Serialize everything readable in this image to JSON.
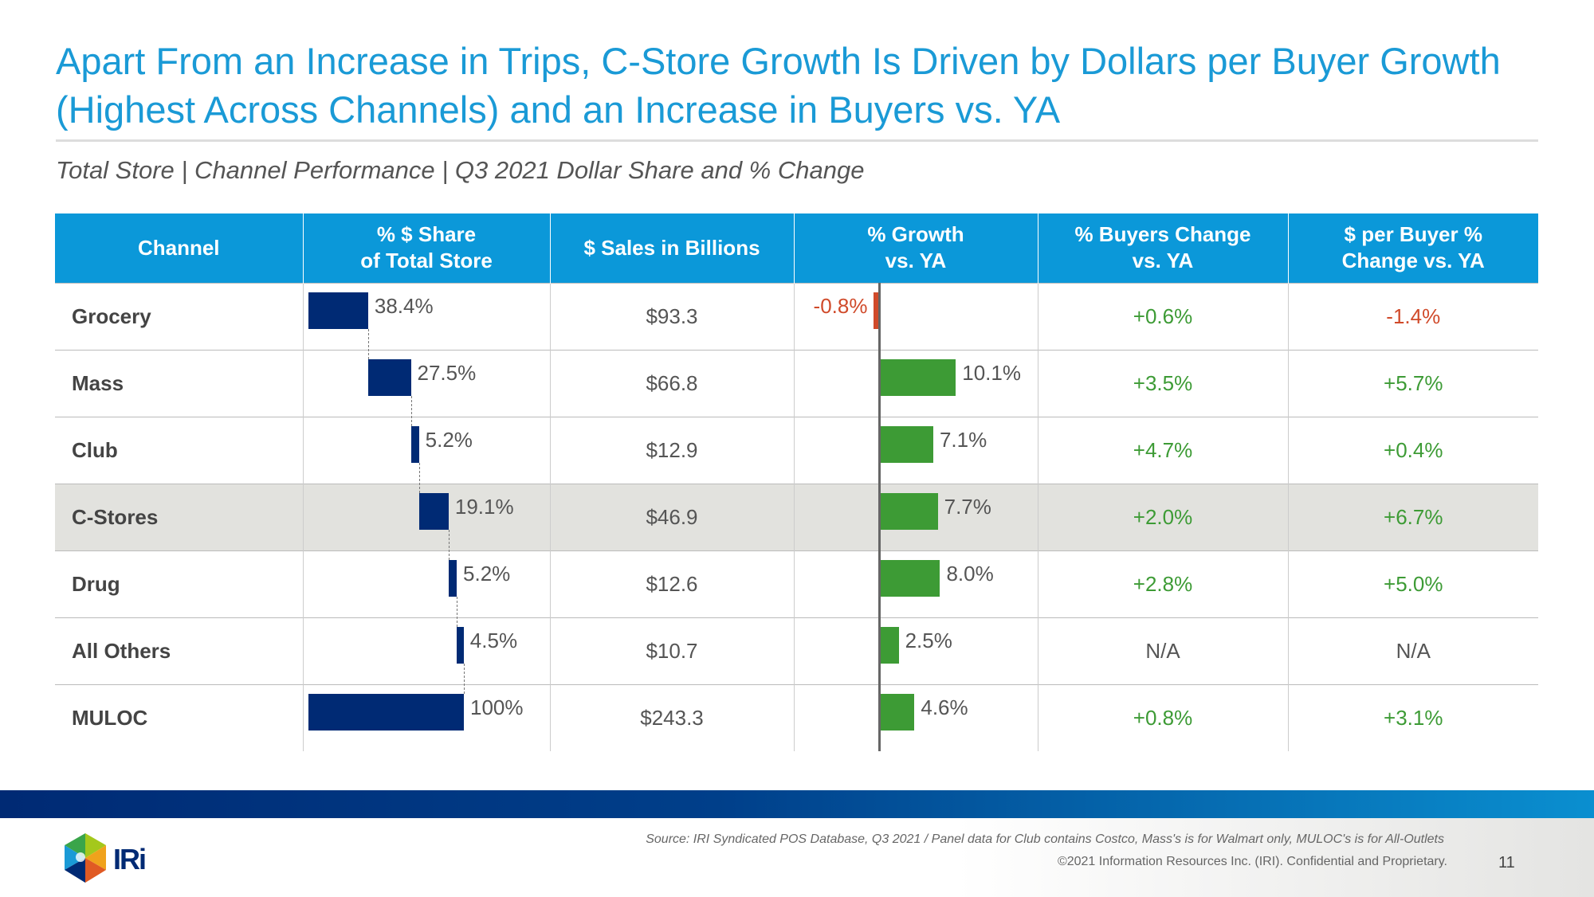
{
  "title": "Apart From an Increase in Trips, C-Store Growth Is Driven by Dollars per Buyer Growth (Highest Across Channels) and an Increase in Buyers vs. YA",
  "subtitle": "Total Store | Channel Performance | Q3 2021 Dollar Share and % Change",
  "colors": {
    "title": "#1a9ad6",
    "header": "#0b98d9",
    "share_bar": "#002a74",
    "positive": "#3d9b35",
    "negative": "#d04a2a",
    "highlight": "#e2e2de"
  },
  "headers": [
    "Channel",
    "% $ Share\nof Total Store",
    "$ Sales in Billions",
    "% Growth\nvs. YA",
    "% Buyers Change\nvs. YA",
    "$ per Buyer %\nChange vs. YA"
  ],
  "rows": [
    {
      "channel": "Grocery",
      "share": 38.4,
      "share_label": "38.4%",
      "sales": "$93.3",
      "growth": -0.8,
      "growth_label": "-0.8%",
      "buyers": "+0.6%",
      "dpb": "-1.4%"
    },
    {
      "channel": "Mass",
      "share": 27.5,
      "share_label": "27.5%",
      "sales": "$66.8",
      "growth": 10.1,
      "growth_label": "10.1%",
      "buyers": "+3.5%",
      "dpb": "+5.7%"
    },
    {
      "channel": "Club",
      "share": 5.2,
      "share_label": "5.2%",
      "sales": "$12.9",
      "growth": 7.1,
      "growth_label": "7.1%",
      "buyers": "+4.7%",
      "dpb": "+0.4%"
    },
    {
      "channel": "C-Stores",
      "share": 19.1,
      "share_label": "19.1%",
      "sales": "$46.9",
      "growth": 7.7,
      "growth_label": "7.7%",
      "buyers": "+2.0%",
      "dpb": "+6.7%",
      "highlight": true
    },
    {
      "channel": "Drug",
      "share": 5.2,
      "share_label": "5.2%",
      "sales": "$12.6",
      "growth": 8.0,
      "growth_label": "8.0%",
      "buyers": "+2.8%",
      "dpb": "+5.0%"
    },
    {
      "channel": "All Others",
      "share": 4.5,
      "share_label": "4.5%",
      "sales": "$10.7",
      "growth": 2.5,
      "growth_label": "2.5%",
      "buyers": "N/A",
      "dpb": "N/A"
    },
    {
      "channel": "MULOC",
      "share": 100,
      "share_label": "100%",
      "sales": "$243.3",
      "growth": 4.6,
      "growth_label": "4.6%",
      "buyers": "+0.8%",
      "dpb": "+3.1%",
      "total": true
    }
  ],
  "footer": {
    "source": "Source: IRI Syndicated POS Database, Q3 2021  /  Panel data for Club contains Costco, Mass's is for Walmart only, MULOC's is for All-Outlets",
    "copyright": "©2021 Information Resources Inc. (IRI). Confidential and Proprietary.",
    "page": "11",
    "logo_text": "IRi"
  }
}
